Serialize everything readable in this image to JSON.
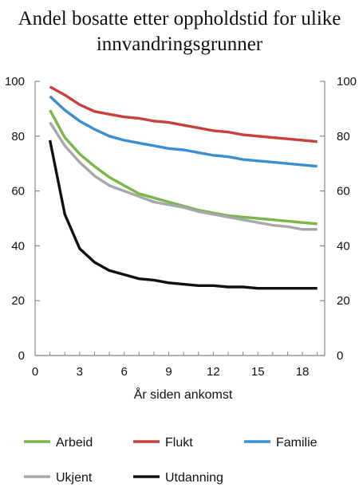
{
  "chart_data": {
    "type": "line",
    "title_lines": [
      "Andel bosatte etter oppholdstid for ulike",
      "innvandringsgrunner"
    ],
    "xlabel": "År siden ankomst",
    "ylabel": "",
    "xlim": [
      0,
      19.5
    ],
    "ylim": [
      0,
      100
    ],
    "x_ticks": [
      0,
      3,
      6,
      9,
      12,
      15,
      18
    ],
    "y_ticks": [
      0,
      20,
      40,
      60,
      80,
      100
    ],
    "grid": false,
    "legend_position": "bottom",
    "x": [
      1,
      2,
      3,
      4,
      5,
      6,
      7,
      8,
      9,
      10,
      11,
      12,
      13,
      14,
      15,
      16,
      17,
      18,
      19
    ],
    "series": [
      {
        "name": "Arbeid",
        "color": "#7ab648",
        "values": [
          89.5,
          79.5,
          73.5,
          69,
          65,
          62,
          59,
          57.5,
          56,
          54.5,
          53,
          52,
          51,
          50.5,
          50,
          49.5,
          49,
          48.5,
          48
        ]
      },
      {
        "name": "Flukt",
        "color": "#c8413c",
        "values": [
          98,
          95,
          91.5,
          89,
          88,
          87,
          86.5,
          85.5,
          85,
          84,
          83,
          82,
          81.5,
          80.5,
          80,
          79.5,
          79,
          78.5,
          78
        ]
      },
      {
        "name": "Familie",
        "color": "#3b8fd0",
        "values": [
          94.5,
          89.5,
          85.5,
          82.5,
          80,
          78.5,
          77.5,
          76.5,
          75.5,
          75,
          74,
          73,
          72.5,
          71.5,
          71,
          70.5,
          70,
          69.5,
          69
        ]
      },
      {
        "name": "Ukjent",
        "color": "#a6a8ab",
        "values": [
          85,
          76.5,
          70.5,
          65.5,
          62,
          60,
          58,
          56,
          55,
          54,
          52.5,
          51.5,
          50.5,
          49.5,
          48.5,
          47.5,
          47,
          46,
          46
        ]
      },
      {
        "name": "Utdanning",
        "color": "#111111",
        "values": [
          78.5,
          51.5,
          39,
          34,
          31,
          29.5,
          28,
          27.5,
          26.5,
          26,
          25.5,
          25.5,
          25,
          25,
          24.5,
          24.5,
          24.5,
          24.5,
          24.5
        ]
      }
    ]
  }
}
